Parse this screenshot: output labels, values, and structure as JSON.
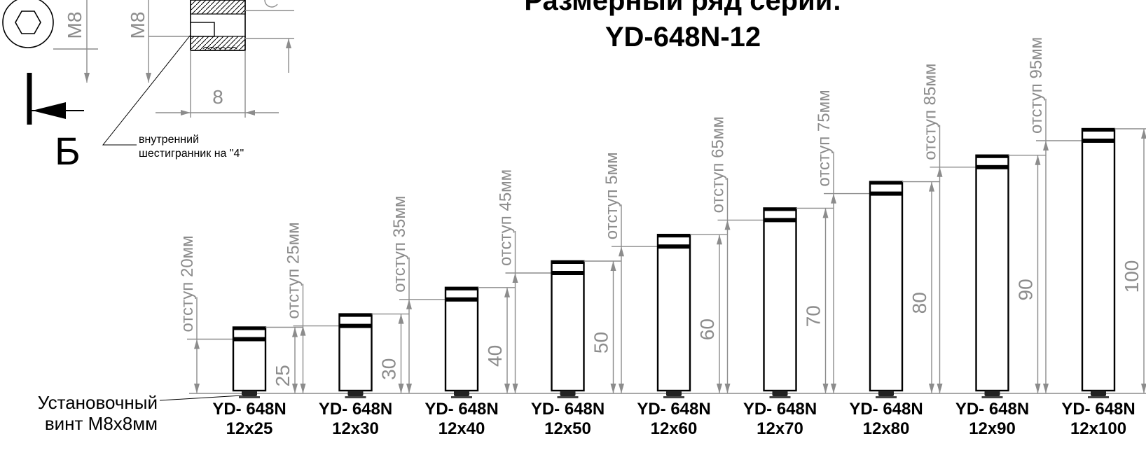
{
  "title": {
    "line1": "Размерный ряд серии:",
    "line2": "YD-648N-12"
  },
  "detail": {
    "thread_label_left": "M8",
    "thread_label_right": "M8",
    "length_label": "8",
    "view_label": "Б",
    "hex_note_line1": "внутренний",
    "hex_note_line2": "шестигранник на \"4\""
  },
  "screw_label": {
    "line1": "Установочный",
    "line2": "винт M8x8мм"
  },
  "models": [
    {
      "name": "YD- 648N",
      "size": "12x25",
      "height": "25",
      "offset": "отступ 20мм"
    },
    {
      "name": "YD- 648N",
      "size": "12x30",
      "height": "30",
      "offset": "отступ 25мм"
    },
    {
      "name": "YD- 648N",
      "size": "12x40",
      "height": "40",
      "offset": "отступ 35мм"
    },
    {
      "name": "YD- 648N",
      "size": "12x50",
      "height": "50",
      "offset": "отступ 45мм"
    },
    {
      "name": "YD- 648N",
      "size": "12x60",
      "height": "60",
      "offset": "отступ 5мм"
    },
    {
      "name": "YD- 648N",
      "size": "12x70",
      "height": "70",
      "offset": "отступ 65мм"
    },
    {
      "name": "YD- 648N",
      "size": "12x80",
      "height": "80",
      "offset": "отступ 75мм"
    },
    {
      "name": "YD- 648N",
      "size": "12x90",
      "height": "90",
      "offset": "отступ 85мм"
    },
    {
      "name": "YD- 648N",
      "size": "12x100",
      "height": "100",
      "offset": "отступ 95мм"
    }
  ],
  "colors": {
    "line": "#000000",
    "dimension": "#8c8c8c",
    "background": "#ffffff"
  }
}
